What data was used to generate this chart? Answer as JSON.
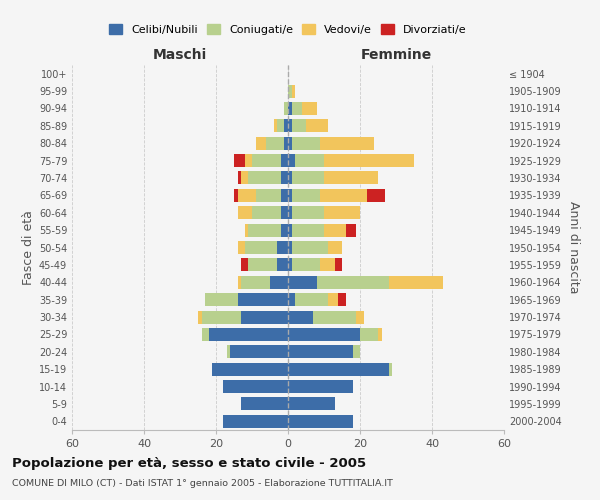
{
  "age_groups_bottom_to_top": [
    "0-4",
    "5-9",
    "10-14",
    "15-19",
    "20-24",
    "25-29",
    "30-34",
    "35-39",
    "40-44",
    "45-49",
    "50-54",
    "55-59",
    "60-64",
    "65-69",
    "70-74",
    "75-79",
    "80-84",
    "85-89",
    "90-94",
    "95-99",
    "100+"
  ],
  "birth_years_bottom_to_top": [
    "2000-2004",
    "1995-1999",
    "1990-1994",
    "1985-1989",
    "1980-1984",
    "1975-1979",
    "1970-1974",
    "1965-1969",
    "1960-1964",
    "1955-1959",
    "1950-1954",
    "1945-1949",
    "1940-1944",
    "1935-1939",
    "1930-1934",
    "1925-1929",
    "1920-1924",
    "1915-1919",
    "1910-1914",
    "1905-1909",
    "≤ 1904"
  ],
  "maschi": {
    "celibi": [
      18,
      13,
      18,
      21,
      16,
      22,
      13,
      14,
      5,
      3,
      3,
      2,
      2,
      2,
      2,
      2,
      1,
      1,
      0,
      0,
      0
    ],
    "coniugati": [
      0,
      0,
      0,
      0,
      1,
      2,
      11,
      9,
      8,
      8,
      9,
      9,
      8,
      7,
      9,
      8,
      5,
      2,
      1,
      0,
      0
    ],
    "vedovi": [
      0,
      0,
      0,
      0,
      0,
      0,
      1,
      0,
      1,
      0,
      2,
      1,
      4,
      5,
      2,
      2,
      3,
      1,
      0,
      0,
      0
    ],
    "divorziati": [
      0,
      0,
      0,
      0,
      0,
      0,
      0,
      0,
      0,
      2,
      0,
      0,
      0,
      1,
      1,
      3,
      0,
      0,
      0,
      0,
      0
    ]
  },
  "femmine": {
    "nubili": [
      18,
      13,
      18,
      28,
      18,
      20,
      7,
      2,
      8,
      1,
      1,
      1,
      1,
      1,
      1,
      2,
      1,
      1,
      1,
      0,
      0
    ],
    "coniugate": [
      0,
      0,
      0,
      1,
      2,
      5,
      12,
      9,
      20,
      8,
      10,
      9,
      9,
      8,
      9,
      8,
      8,
      4,
      3,
      1,
      0
    ],
    "vedove": [
      0,
      0,
      0,
      0,
      0,
      1,
      2,
      3,
      15,
      4,
      4,
      6,
      10,
      13,
      15,
      25,
      15,
      6,
      4,
      1,
      0
    ],
    "divorziate": [
      0,
      0,
      0,
      0,
      0,
      0,
      0,
      2,
      0,
      2,
      0,
      3,
      0,
      5,
      0,
      0,
      0,
      0,
      0,
      0,
      0
    ]
  },
  "colors": {
    "celibi": "#3d6da8",
    "coniugati": "#b8d08e",
    "vedovi": "#f2c55c",
    "divorziati": "#cc2222"
  },
  "title": "Popolazione per età, sesso e stato civile - 2005",
  "subtitle": "COMUNE DI MILO (CT) - Dati ISTAT 1° gennaio 2005 - Elaborazione TUTTITALIA.IT",
  "xlabel_maschi": "Maschi",
  "xlabel_femmine": "Femmine",
  "ylabel_left": "Fasce di età",
  "ylabel_right": "Anni di nascita",
  "xlim": 60,
  "background_color": "#f5f5f5",
  "grid_color": "#cccccc"
}
